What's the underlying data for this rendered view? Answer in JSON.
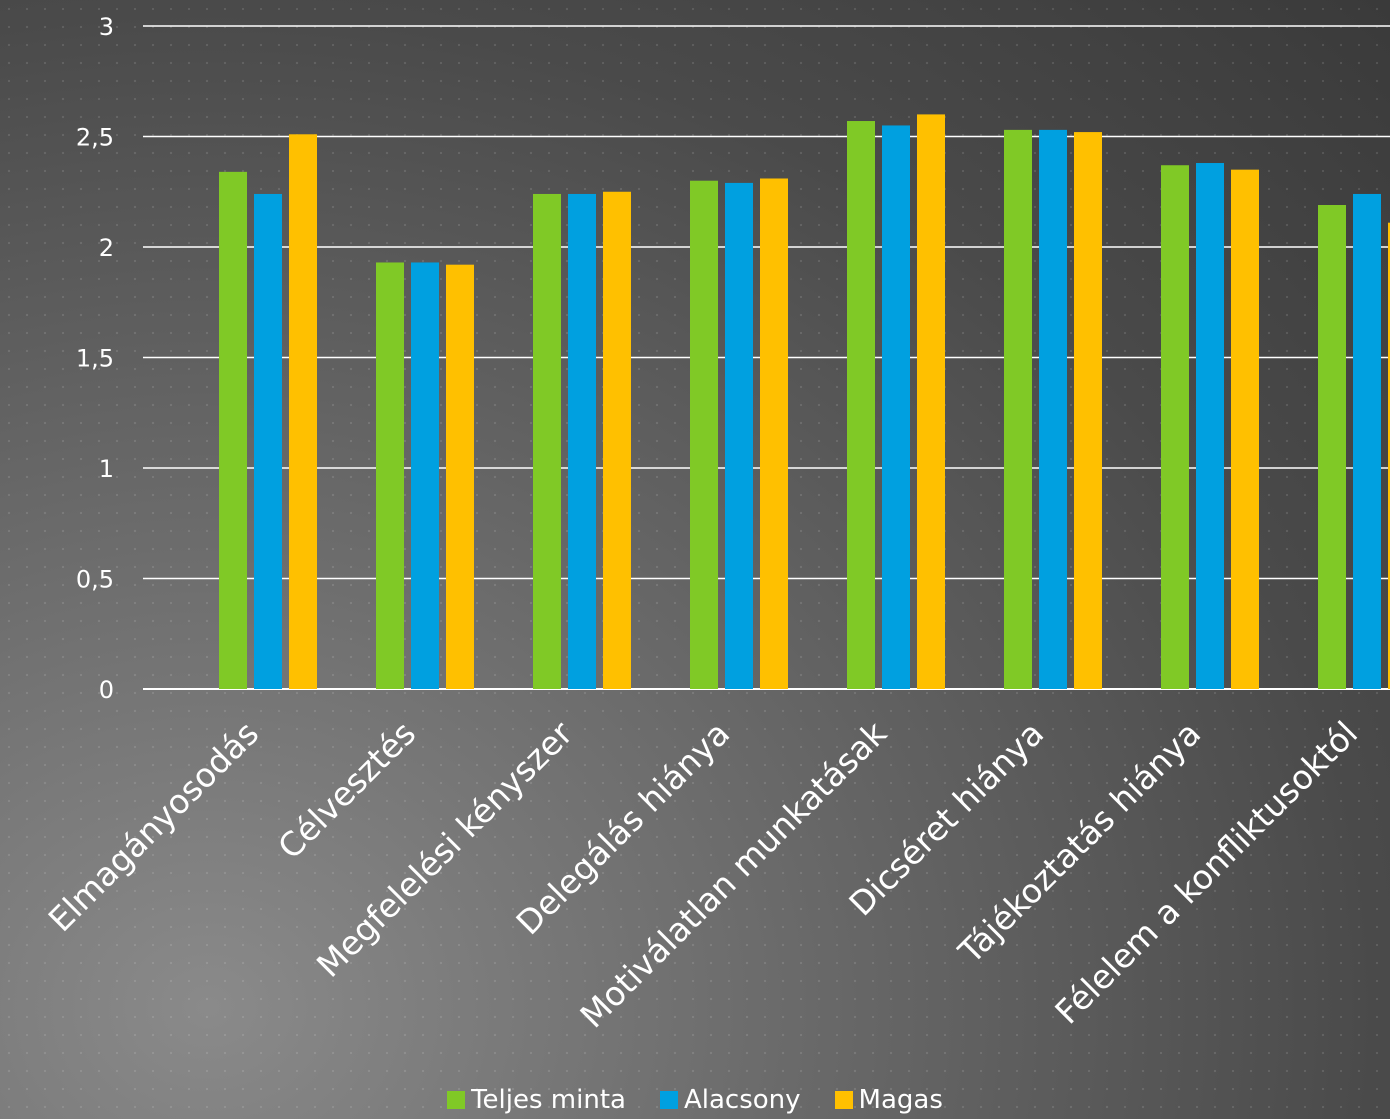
{
  "chart_data": {
    "type": "bar",
    "categories": [
      "Elmagányosodás",
      "Célvesztés",
      "Megfelelési kényszer",
      "Delegálás hiánya",
      "Motiválatlan munkatásak",
      "Dicséret hiánya",
      "Tájékoztatás hiánya",
      "Félelem a konfliktusoktól"
    ],
    "series": [
      {
        "name": "Teljes minta",
        "color": "#80c926",
        "values": [
          2.34,
          1.93,
          2.24,
          2.3,
          2.57,
          2.53,
          2.37,
          2.19
        ]
      },
      {
        "name": "Alacsony",
        "color": "#00a0e0",
        "values": [
          2.24,
          1.93,
          2.24,
          2.29,
          2.55,
          2.53,
          2.38,
          2.24
        ]
      },
      {
        "name": "Magas",
        "color": "#ffc000",
        "values": [
          2.51,
          1.92,
          2.25,
          2.31,
          2.6,
          2.52,
          2.35,
          2.11
        ]
      }
    ],
    "y_ticks": [
      "0",
      "0,5",
      "1",
      "1,5",
      "2",
      "2,5",
      "3"
    ],
    "ylim": [
      0,
      3
    ],
    "grid": true,
    "legend_position": "bottom"
  }
}
